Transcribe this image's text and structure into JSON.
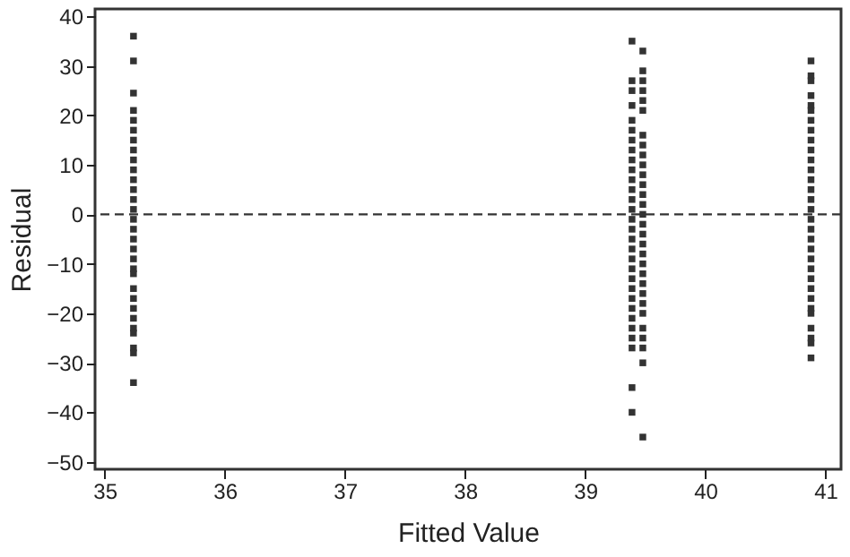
{
  "chart_data": {
    "type": "scatter",
    "xlabel": "Fitted Value",
    "ylabel": "Residual",
    "xlim": [
      34.92,
      41.13
    ],
    "xticks": [
      35,
      36,
      37,
      38,
      39,
      40,
      41
    ],
    "ylim": [
      -51.5,
      41.5
    ],
    "yticks": [
      -50,
      -40,
      -30,
      -20,
      -10,
      0,
      10,
      20,
      30,
      40
    ],
    "grid": false,
    "legend": false,
    "marker": "square",
    "ref_lines": [
      {
        "axis": "y",
        "value": 0,
        "line_style": "dashed",
        "color": "#333333"
      }
    ],
    "series": [
      {
        "color": "#333333",
        "x": [
          35.24,
          35.24,
          35.24,
          35.24,
          35.24,
          35.24,
          35.24,
          35.24,
          35.24,
          35.24,
          35.24,
          35.24,
          35.24,
          35.24,
          35.24,
          35.24,
          35.24,
          35.24,
          35.24,
          35.24,
          35.24,
          35.24,
          35.24,
          35.24,
          35.24,
          35.24,
          35.24,
          35.24,
          35.24,
          35.24
        ],
        "values": [
          36,
          31,
          24.5,
          21,
          19,
          17,
          15,
          13,
          11,
          9,
          7,
          5,
          3,
          1,
          -1,
          -3,
          -5,
          -7,
          -9,
          -11,
          -12,
          -15,
          -17,
          -19,
          -21,
          -23,
          -24,
          -27,
          -28,
          -34
        ]
      },
      {
        "color": "#333333",
        "x": [
          39.39,
          39.39,
          39.39,
          39.39,
          39.39,
          39.39,
          39.39,
          39.39,
          39.39,
          39.39,
          39.39,
          39.39,
          39.39,
          39.39,
          39.39,
          39.39,
          39.39,
          39.39,
          39.39,
          39.39,
          39.39,
          39.39,
          39.39,
          39.39,
          39.39,
          39.39,
          39.39,
          39.39,
          39.39,
          39.39
        ],
        "values": [
          35,
          27,
          25,
          22,
          19,
          17,
          15,
          13,
          11,
          9,
          7,
          5,
          3,
          1,
          -1,
          -3,
          -5,
          -7,
          -9,
          -11,
          -13,
          -15,
          -17,
          -19,
          -21,
          -23,
          -25,
          -27,
          -35,
          -40
        ]
      },
      {
        "color": "#333333",
        "x": [
          39.48,
          39.48,
          39.48,
          39.48,
          39.48,
          39.48,
          39.48,
          39.48,
          39.48,
          39.48,
          39.48,
          39.48,
          39.48,
          39.48,
          39.48,
          39.48,
          39.48,
          39.48,
          39.48,
          39.48,
          39.48,
          39.48,
          39.48,
          39.48,
          39.48,
          39.48,
          39.48,
          39.48,
          39.48,
          39.48
        ],
        "values": [
          33,
          29,
          27,
          25,
          23,
          21,
          16,
          14,
          12,
          10,
          8,
          6,
          4,
          2,
          0,
          -2,
          -4,
          -6,
          -8,
          -10,
          -12,
          -14,
          -16,
          -18,
          -20,
          -23,
          -25,
          -27,
          -30,
          -45
        ]
      },
      {
        "color": "#333333",
        "x": [
          40.88,
          40.88,
          40.88,
          40.88,
          40.88,
          40.88,
          40.88,
          40.88,
          40.88,
          40.88,
          40.88,
          40.88,
          40.88,
          40.88,
          40.88,
          40.88,
          40.88,
          40.88,
          40.88,
          40.88,
          40.88,
          40.88,
          40.88,
          40.88,
          40.88,
          40.88,
          40.88,
          40.88,
          40.88,
          40.88,
          40.88
        ],
        "values": [
          31,
          28,
          27,
          24,
          22,
          21,
          19,
          17,
          15,
          13,
          11,
          9,
          7,
          5,
          3,
          1,
          -1,
          -3,
          -5,
          -7,
          -9,
          -11,
          -13,
          -15,
          -17,
          -19,
          -20,
          -23,
          -25,
          -26,
          -29
        ]
      }
    ]
  }
}
